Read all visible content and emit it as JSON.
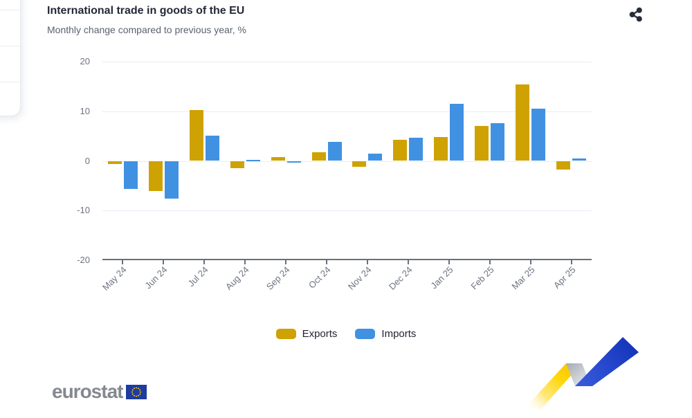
{
  "header": {
    "title": "International trade in goods of the EU",
    "subtitle": "Monthly change compared to previous year, %"
  },
  "chart_data": {
    "type": "bar",
    "title": "International trade in goods of the EU",
    "subtitle": "Monthly change compared to previous year, %",
    "categories": [
      "May 24",
      "Jun 24",
      "Jul 24",
      "Aug 24",
      "Sep 24",
      "Oct 24",
      "Nov 24",
      "Dec 24",
      "Jan 25",
      "Feb 25",
      "Mar 25",
      "Apr 25"
    ],
    "series": [
      {
        "name": "Exports",
        "color": "#CEA202",
        "values": [
          -0.6,
          -6.0,
          10.2,
          -1.4,
          0.8,
          1.7,
          -1.2,
          4.2,
          4.8,
          7.0,
          15.4,
          -1.8
        ]
      },
      {
        "name": "Imports",
        "color": "#4191E2",
        "values": [
          -5.6,
          -7.6,
          5.1,
          0.2,
          -0.2,
          3.8,
          1.4,
          4.7,
          11.5,
          7.6,
          10.5,
          0.5
        ]
      }
    ],
    "ylim": [
      -20,
      20
    ],
    "yticks": [
      20,
      10,
      0,
      -10,
      -20
    ],
    "grid": true,
    "legend_position": "bottom"
  },
  "footer": {
    "logo_text": "eurostat"
  },
  "colors": {
    "exports": "#CEA202",
    "imports": "#4191E2",
    "gridline": "#e9edf5",
    "axis": "#6a7078",
    "title": "#232936",
    "subtitle": "#5a6170",
    "eu_flag_blue": "#1e3b9f",
    "eu_star_yellow": "#ffcc00"
  }
}
